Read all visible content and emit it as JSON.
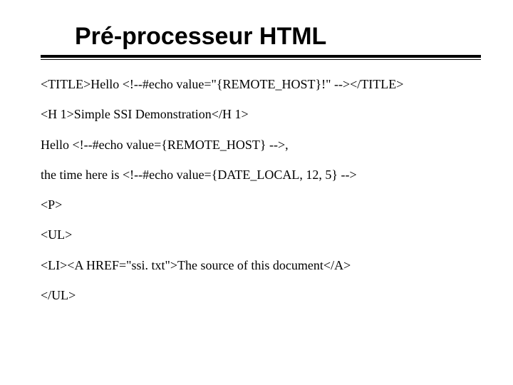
{
  "slide": {
    "title": "Pré-processeur HTML",
    "title_fontsize": 34,
    "title_font": "Arial",
    "title_weight": "bold",
    "title_color": "#000000",
    "rule_color": "#000000",
    "rule_outer_height": 4,
    "rule_inner_height": 1,
    "body_font": "Times New Roman",
    "body_fontsize": 18,
    "body_color": "#000000",
    "background_color": "#ffffff",
    "lines": [
      "<TITLE>Hello <!--#echo value=\"{REMOTE_HOST}!\" --></TITLE>",
      "<H 1>Simple SSI Demonstration</H 1>",
      "Hello <!--#echo value={REMOTE_HOST} -->,",
      "the time here is <!--#echo value={DATE_LOCAL, 12, 5} -->",
      "<P>",
      "<UL>",
      "<LI><A HREF=\"ssi. txt\">The source of this document</A>",
      "</UL>"
    ]
  }
}
